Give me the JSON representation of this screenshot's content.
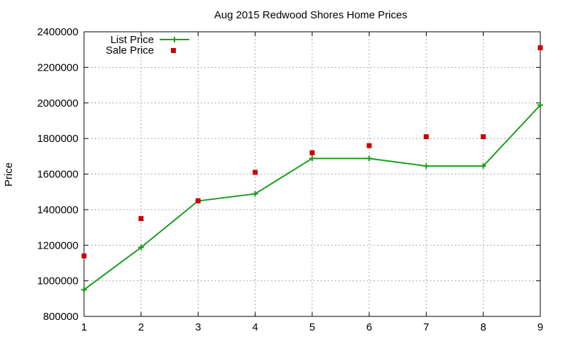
{
  "chart_data": {
    "type": "line",
    "title": "Aug 2015 Redwood Shores Home Prices",
    "xlabel": "",
    "ylabel": "Price",
    "x": [
      1,
      2,
      3,
      4,
      5,
      6,
      7,
      8,
      9
    ],
    "x_tick_labels": [
      "1",
      "2",
      "3",
      "4",
      "5",
      "6",
      "7",
      "8",
      "9"
    ],
    "xlim": [
      1,
      9
    ],
    "ylim": [
      800000,
      2400000
    ],
    "y_tick_labels": [
      "800000",
      "1000000",
      "1200000",
      "1400000",
      "1600000",
      "1800000",
      "2000000",
      "2200000",
      "2400000"
    ],
    "y_ticks": [
      800000,
      1000000,
      1200000,
      1400000,
      1600000,
      1800000,
      2000000,
      2200000,
      2400000
    ],
    "grid": true,
    "legend_position": "top-left",
    "series": [
      {
        "name": "List Price",
        "style": "line-with-plus-markers",
        "color": "#1a9e1a",
        "values": [
          950000,
          1188000,
          1449000,
          1489000,
          1688000,
          1688000,
          1645000,
          1645000,
          1988000
        ]
      },
      {
        "name": "Sale Price",
        "style": "square-markers",
        "color": "#cc0000",
        "values": [
          1140000,
          1350000,
          1450000,
          1610000,
          1720000,
          1760000,
          1810000,
          1810000,
          2310000
        ]
      }
    ]
  }
}
